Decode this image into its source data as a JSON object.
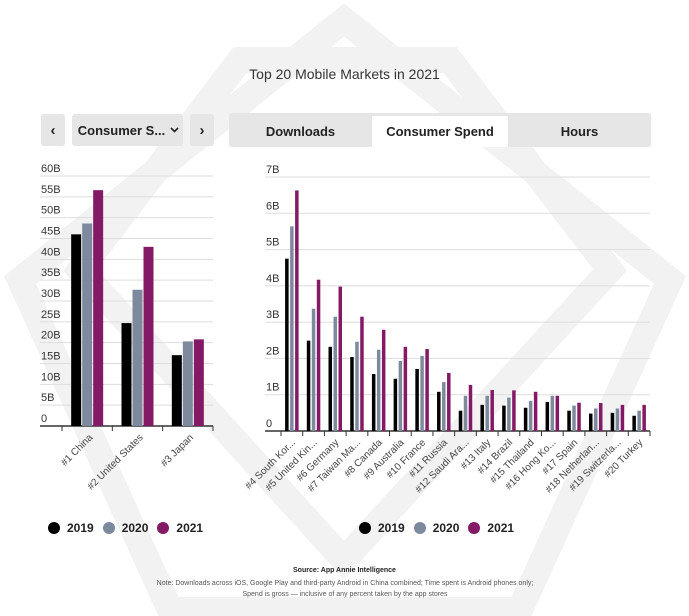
{
  "title": "Top 20 Mobile Markets in 2021",
  "controls": {
    "prev_label": "‹",
    "next_label": "›",
    "metric_select": "Consumer S...",
    "chevron": "⌄"
  },
  "tabs": [
    {
      "label": "Downloads",
      "active": false
    },
    {
      "label": "Consumer Spend",
      "active": true
    },
    {
      "label": "Hours",
      "active": false
    }
  ],
  "colors": {
    "2019": "#000000",
    "2020": "#7d8a9e",
    "2021": "#841a66",
    "grid": "#dddddd",
    "axis": "#333333"
  },
  "legend": [
    {
      "label": "2019",
      "color": "#000000"
    },
    {
      "label": "2020",
      "color": "#7d8a9e"
    },
    {
      "label": "2021",
      "color": "#841a66"
    }
  ],
  "chart_data": [
    {
      "type": "bar",
      "title": "",
      "xlabel": "",
      "ylabel": "",
      "ylim": [
        0,
        60
      ],
      "yticks": [
        0,
        5,
        10,
        15,
        20,
        25,
        30,
        35,
        40,
        45,
        50,
        55,
        60
      ],
      "ytick_labels": [
        "0",
        "5B",
        "10B",
        "15B",
        "20B",
        "25B",
        "30B",
        "35B",
        "40B",
        "45B",
        "50B",
        "55B",
        "60B"
      ],
      "grid": true,
      "legend": "bottom",
      "categories": [
        "#1 China",
        "#2 United States",
        "#3 Japan"
      ],
      "series": [
        {
          "name": "2019",
          "values": [
            46.0,
            24.7,
            17.0
          ]
        },
        {
          "name": "2020",
          "values": [
            48.6,
            32.7,
            20.3
          ]
        },
        {
          "name": "2021",
          "values": [
            56.6,
            43.0,
            20.8
          ]
        }
      ]
    },
    {
      "type": "bar",
      "title": "",
      "xlabel": "",
      "ylabel": "",
      "ylim": [
        0,
        7
      ],
      "yticks": [
        0,
        1,
        2,
        3,
        4,
        5,
        6,
        7
      ],
      "ytick_labels": [
        "0",
        "1B",
        "2B",
        "3B",
        "4B",
        "5B",
        "6B",
        "7B"
      ],
      "grid": true,
      "legend": "bottom",
      "categories": [
        "#4 South Kor...",
        "#5 United Kin...",
        "#6 Germany",
        "#7 Taiwan Ma...",
        "#8 Canada",
        "#9 Australia",
        "#10 France",
        "#11 Russia",
        "#12 Saudi Ara...",
        "#13 Italy",
        "#14 Brazil",
        "#15 Thailand",
        "#16 Hong Ko...",
        "#17 Spain",
        "#18 Netherlan...",
        "#19 Switzerla...",
        "#20 Turkey"
      ],
      "series": [
        {
          "name": "2019",
          "values": [
            4.75,
            2.49,
            2.32,
            2.04,
            1.57,
            1.44,
            1.71,
            1.08,
            0.56,
            0.72,
            0.7,
            0.64,
            0.8,
            0.56,
            0.48,
            0.5,
            0.42
          ]
        },
        {
          "name": "2020",
          "values": [
            5.64,
            3.37,
            3.15,
            2.46,
            2.24,
            1.93,
            2.07,
            1.35,
            0.97,
            0.97,
            0.92,
            0.83,
            0.97,
            0.7,
            0.62,
            0.62,
            0.56
          ]
        },
        {
          "name": "2021",
          "values": [
            6.63,
            4.17,
            3.98,
            3.15,
            2.79,
            2.32,
            2.26,
            1.6,
            1.27,
            1.13,
            1.12,
            1.08,
            0.97,
            0.78,
            0.77,
            0.72,
            0.72
          ]
        }
      ]
    }
  ],
  "footer": {
    "source": "Source: App Annie Intelligence",
    "note": "Note: Downloads across iOS, Google Play and third-party Android in China combined; Time spent is Android phones only; Spend is gross — inclusive of any percent taken by the app stores"
  }
}
